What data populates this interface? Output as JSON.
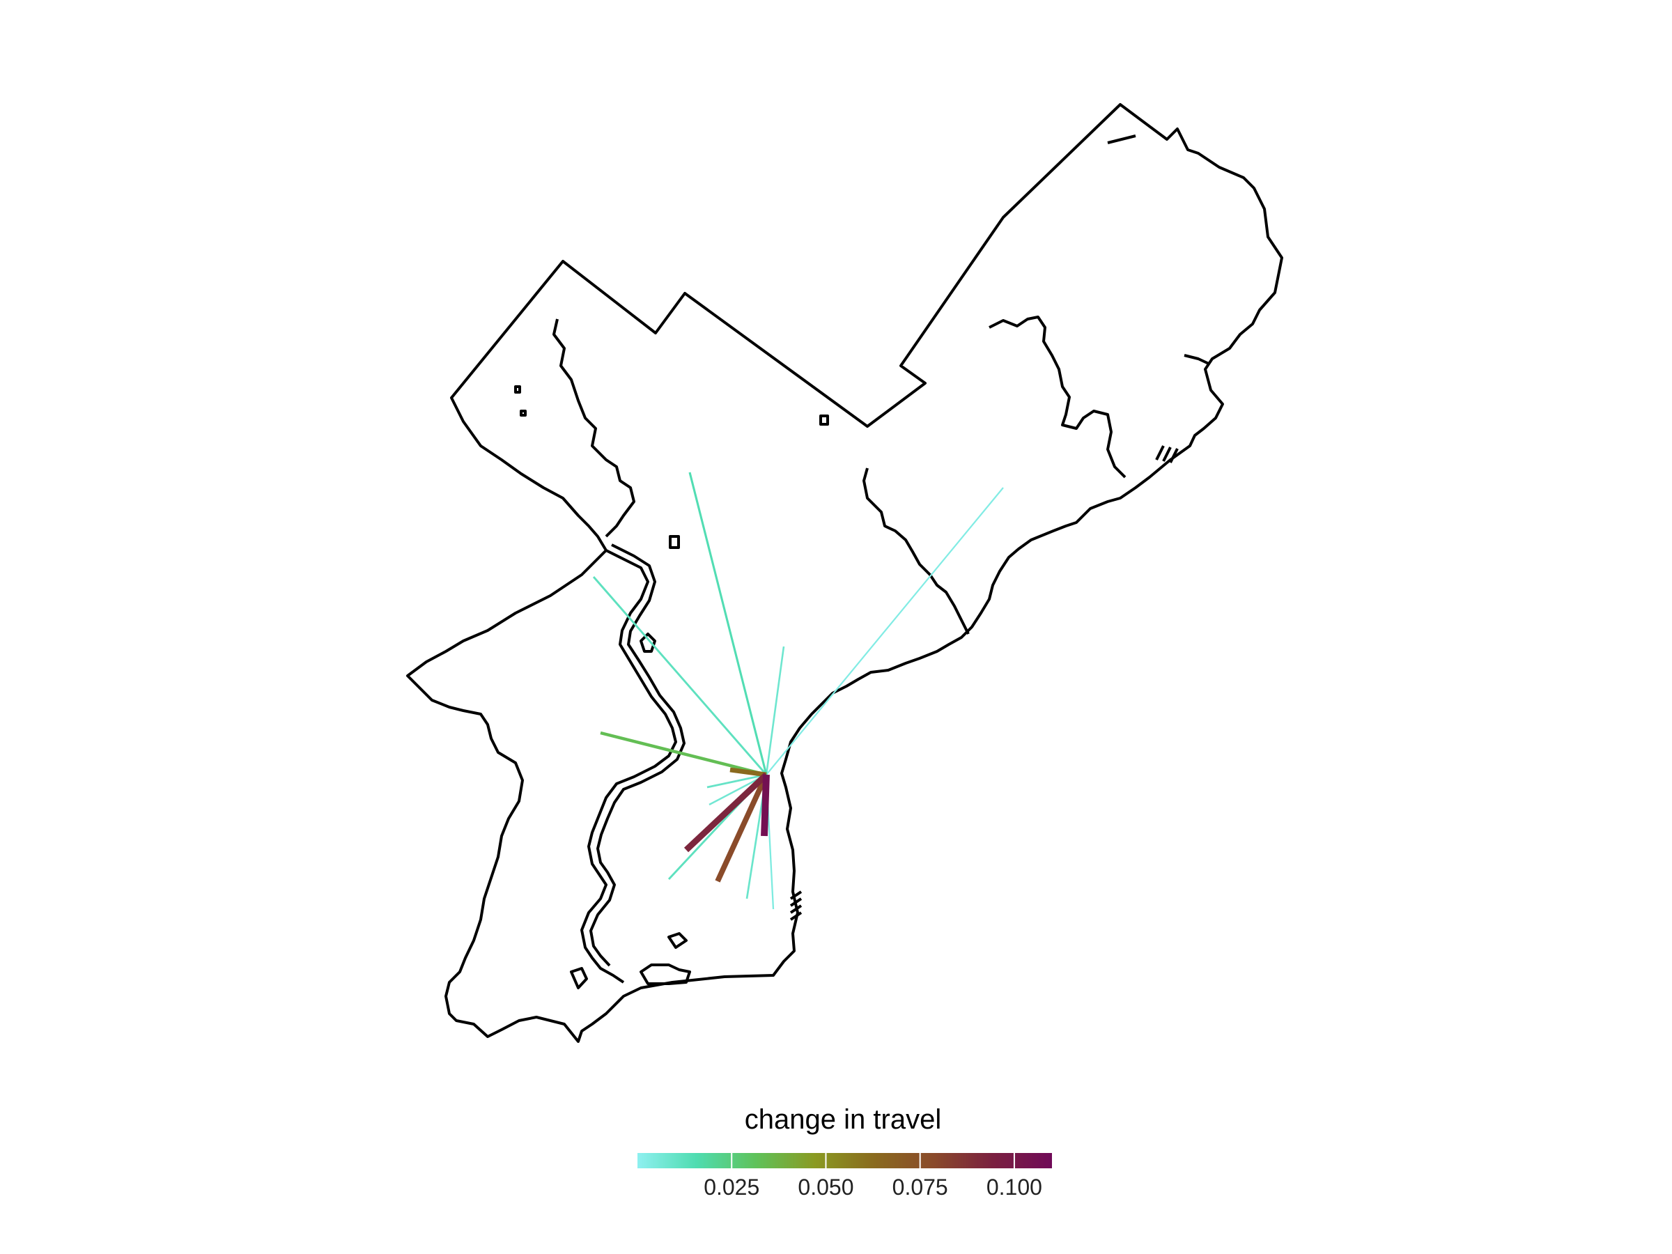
{
  "legend": {
    "title": "change in travel",
    "ticks": [
      0.025,
      0.05,
      0.075,
      0.1
    ],
    "tick_labels": [
      "0.025",
      "0.050",
      "0.075",
      "0.100"
    ],
    "range": [
      0.0,
      0.11
    ],
    "colors": [
      "#8ef0f0",
      "#4fdcb0",
      "#5fc25a",
      "#8a9a22",
      "#8a6a1e",
      "#8a4a2a",
      "#7a2040",
      "#700a58"
    ]
  },
  "chart_data": {
    "type": "flow-map",
    "legend_title": "change in travel",
    "color_scale": {
      "min": 0.0,
      "max": 0.11,
      "colors": [
        "#8ef0f0",
        "#4fdcb0",
        "#5fc25a",
        "#8a9a22",
        "#8a6a1e",
        "#8a4a2a",
        "#7a2040",
        "#700a58"
      ]
    },
    "flows": [
      {
        "to": "north",
        "value": 0.015
      },
      {
        "to": "northeast",
        "value": 0.003
      },
      {
        "to": "northwest",
        "value": 0.012
      },
      {
        "to": "west",
        "value": 0.033
      },
      {
        "to": "west-near",
        "value": 0.063
      },
      {
        "to": "north-near",
        "value": 0.008
      },
      {
        "to": "south-vertical",
        "value": 0.106
      },
      {
        "to": "south-brown",
        "value": 0.078
      },
      {
        "to": "southwest-brown",
        "value": 0.092
      },
      {
        "to": "southwest",
        "value": 0.012
      },
      {
        "to": "south-southwest",
        "value": 0.009
      },
      {
        "to": "south",
        "value": 0.004
      },
      {
        "to": "west-southwest",
        "value": 0.007
      },
      {
        "to": "west-short",
        "value": 0.01
      }
    ]
  }
}
